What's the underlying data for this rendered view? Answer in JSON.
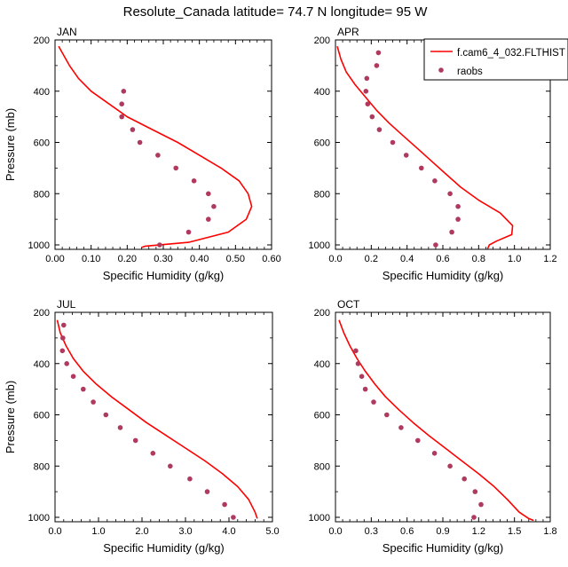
{
  "title": "Resolute_Canada  latitude= 74.7 N longitude= 95 W",
  "legend": {
    "model_label": "f.cam6_4_032.FLTHIST",
    "obs_label": "raobs",
    "model_color": "#ff0000",
    "obs_color": "#b03a5e"
  },
  "chart_data": [
    {
      "type": "line",
      "panel": "JAN",
      "xlabel": "Specific Humidity (g/kg)",
      "ylabel": "Pressure (mb)",
      "xlim": [
        0,
        0.6
      ],
      "ylim": [
        1000,
        200
      ],
      "xticks": [
        "0.00",
        "0.10",
        "0.20",
        "0.30",
        "0.40",
        "0.50",
        "0.60"
      ],
      "xtick_values": [
        0,
        0.1,
        0.2,
        0.3,
        0.4,
        0.5,
        0.6
      ],
      "yticks": [
        "200",
        "400",
        "600",
        "800",
        "1000"
      ],
      "ytick_values": [
        200,
        400,
        600,
        800,
        1000
      ],
      "series": [
        {
          "name": "f.cam6_4_032.FLTHIST",
          "kind": "line",
          "points": [
            [
              0.01,
              225
            ],
            [
              0.02,
              250
            ],
            [
              0.04,
              300
            ],
            [
              0.065,
              350
            ],
            [
              0.1,
              400
            ],
            [
              0.15,
              450
            ],
            [
              0.2,
              500
            ],
            [
              0.27,
              550
            ],
            [
              0.34,
              600
            ],
            [
              0.4,
              650
            ],
            [
              0.46,
              700
            ],
            [
              0.51,
              750
            ],
            [
              0.535,
              800
            ],
            [
              0.545,
              850
            ],
            [
              0.53,
              900
            ],
            [
              0.48,
              950
            ],
            [
              0.37,
              990
            ],
            [
              0.25,
              1005
            ],
            [
              0.24,
              1010
            ]
          ]
        },
        {
          "name": "raobs",
          "kind": "scatter",
          "points": [
            [
              0.19,
              400
            ],
            [
              0.185,
              450
            ],
            [
              0.185,
              500
            ],
            [
              0.215,
              550
            ],
            [
              0.235,
              600
            ],
            [
              0.285,
              650
            ],
            [
              0.335,
              700
            ],
            [
              0.385,
              750
            ],
            [
              0.425,
              800
            ],
            [
              0.44,
              850
            ],
            [
              0.425,
              900
            ],
            [
              0.37,
              950
            ],
            [
              0.29,
              1000
            ]
          ]
        }
      ]
    },
    {
      "type": "line",
      "panel": "APR",
      "xlabel": "Specific Humidity (g/kg)",
      "ylabel": "Pressure (mb)",
      "xlim": [
        0,
        1.2
      ],
      "ylim": [
        1000,
        200
      ],
      "xticks": [
        "0.0",
        "0.2",
        "0.4",
        "0.6",
        "0.8",
        "1.0",
        "1.2"
      ],
      "xtick_values": [
        0,
        0.2,
        0.4,
        0.6,
        0.8,
        1.0,
        1.2
      ],
      "yticks": [
        "200",
        "400",
        "600",
        "800",
        "1000"
      ],
      "ytick_values": [
        200,
        400,
        600,
        800,
        1000
      ],
      "series": [
        {
          "name": "f.cam6_4_032.FLTHIST",
          "kind": "line",
          "points": [
            [
              0.01,
              225
            ],
            [
              0.03,
              275
            ],
            [
              0.06,
              325
            ],
            [
              0.11,
              375
            ],
            [
              0.17,
              425
            ],
            [
              0.23,
              475
            ],
            [
              0.3,
              525
            ],
            [
              0.38,
              575
            ],
            [
              0.46,
              625
            ],
            [
              0.54,
              675
            ],
            [
              0.62,
              725
            ],
            [
              0.7,
              775
            ],
            [
              0.8,
              825
            ],
            [
              0.92,
              875
            ],
            [
              0.99,
              925
            ],
            [
              0.985,
              960
            ],
            [
              0.9,
              985
            ],
            [
              0.86,
              1000
            ],
            [
              0.85,
              1015
            ]
          ]
        },
        {
          "name": "raobs",
          "kind": "scatter",
          "points": [
            [
              0.24,
              250
            ],
            [
              0.23,
              300
            ],
            [
              0.175,
              350
            ],
            [
              0.17,
              400
            ],
            [
              0.18,
              450
            ],
            [
              0.205,
              500
            ],
            [
              0.245,
              550
            ],
            [
              0.32,
              600
            ],
            [
              0.395,
              650
            ],
            [
              0.48,
              700
            ],
            [
              0.555,
              750
            ],
            [
              0.64,
              800
            ],
            [
              0.685,
              850
            ],
            [
              0.685,
              900
            ],
            [
              0.65,
              950
            ],
            [
              0.56,
              1000
            ]
          ]
        }
      ]
    },
    {
      "type": "line",
      "panel": "JUL",
      "xlabel": "Specific Humidity (g/kg)",
      "ylabel": "Pressure (mb)",
      "xlim": [
        0,
        5.0
      ],
      "ylim": [
        1000,
        200
      ],
      "xticks": [
        "0.0",
        "1.0",
        "2.0",
        "3.0",
        "4.0",
        "5.0"
      ],
      "xtick_values": [
        0,
        1,
        2,
        3,
        4,
        5
      ],
      "yticks": [
        "200",
        "400",
        "600",
        "800",
        "1000"
      ],
      "ytick_values": [
        200,
        400,
        600,
        800,
        1000
      ],
      "series": [
        {
          "name": "f.cam6_4_032.FLTHIST",
          "kind": "line",
          "points": [
            [
              0.05,
              230
            ],
            [
              0.12,
              280
            ],
            [
              0.25,
              330
            ],
            [
              0.42,
              380
            ],
            [
              0.65,
              430
            ],
            [
              0.95,
              480
            ],
            [
              1.3,
              530
            ],
            [
              1.7,
              580
            ],
            [
              2.1,
              630
            ],
            [
              2.55,
              680
            ],
            [
              3.0,
              730
            ],
            [
              3.45,
              780
            ],
            [
              3.85,
              830
            ],
            [
              4.2,
              880
            ],
            [
              4.45,
              930
            ],
            [
              4.6,
              980
            ],
            [
              4.65,
              1005
            ]
          ]
        },
        {
          "name": "raobs",
          "kind": "scatter",
          "points": [
            [
              0.2,
              250
            ],
            [
              0.18,
              300
            ],
            [
              0.17,
              350
            ],
            [
              0.27,
              400
            ],
            [
              0.42,
              450
            ],
            [
              0.65,
              500
            ],
            [
              0.88,
              550
            ],
            [
              1.17,
              600
            ],
            [
              1.5,
              650
            ],
            [
              1.85,
              700
            ],
            [
              2.25,
              750
            ],
            [
              2.65,
              800
            ],
            [
              3.1,
              850
            ],
            [
              3.5,
              900
            ],
            [
              3.9,
              950
            ],
            [
              4.1,
              1000
            ]
          ]
        }
      ]
    },
    {
      "type": "line",
      "panel": "OCT",
      "xlabel": "Specific Humidity (g/kg)",
      "ylabel": "Pressure (mb)",
      "xlim": [
        0,
        1.8
      ],
      "ylim": [
        1000,
        200
      ],
      "xticks": [
        "0.0",
        "0.3",
        "0.6",
        "0.9",
        "1.2",
        "1.5",
        "1.8"
      ],
      "xtick_values": [
        0,
        0.3,
        0.6,
        0.9,
        1.2,
        1.5,
        1.8
      ],
      "yticks": [
        "200",
        "400",
        "600",
        "800",
        "1000"
      ],
      "ytick_values": [
        200,
        400,
        600,
        800,
        1000
      ],
      "series": [
        {
          "name": "f.cam6_4_032.FLTHIST",
          "kind": "line",
          "points": [
            [
              0.03,
              230
            ],
            [
              0.07,
              280
            ],
            [
              0.12,
              330
            ],
            [
              0.18,
              380
            ],
            [
              0.25,
              430
            ],
            [
              0.33,
              480
            ],
            [
              0.42,
              530
            ],
            [
              0.53,
              580
            ],
            [
              0.65,
              630
            ],
            [
              0.78,
              680
            ],
            [
              0.92,
              730
            ],
            [
              1.06,
              780
            ],
            [
              1.2,
              830
            ],
            [
              1.33,
              880
            ],
            [
              1.44,
              930
            ],
            [
              1.54,
              980
            ],
            [
              1.62,
              1005
            ],
            [
              1.66,
              1012
            ]
          ]
        },
        {
          "name": "raobs",
          "kind": "scatter",
          "points": [
            [
              0.17,
              350
            ],
            [
              0.19,
              400
            ],
            [
              0.22,
              450
            ],
            [
              0.25,
              500
            ],
            [
              0.32,
              550
            ],
            [
              0.43,
              600
            ],
            [
              0.55,
              650
            ],
            [
              0.69,
              700
            ],
            [
              0.83,
              750
            ],
            [
              0.96,
              800
            ],
            [
              1.08,
              850
            ],
            [
              1.17,
              900
            ],
            [
              1.22,
              950
            ],
            [
              1.16,
              1000
            ]
          ]
        }
      ]
    }
  ]
}
